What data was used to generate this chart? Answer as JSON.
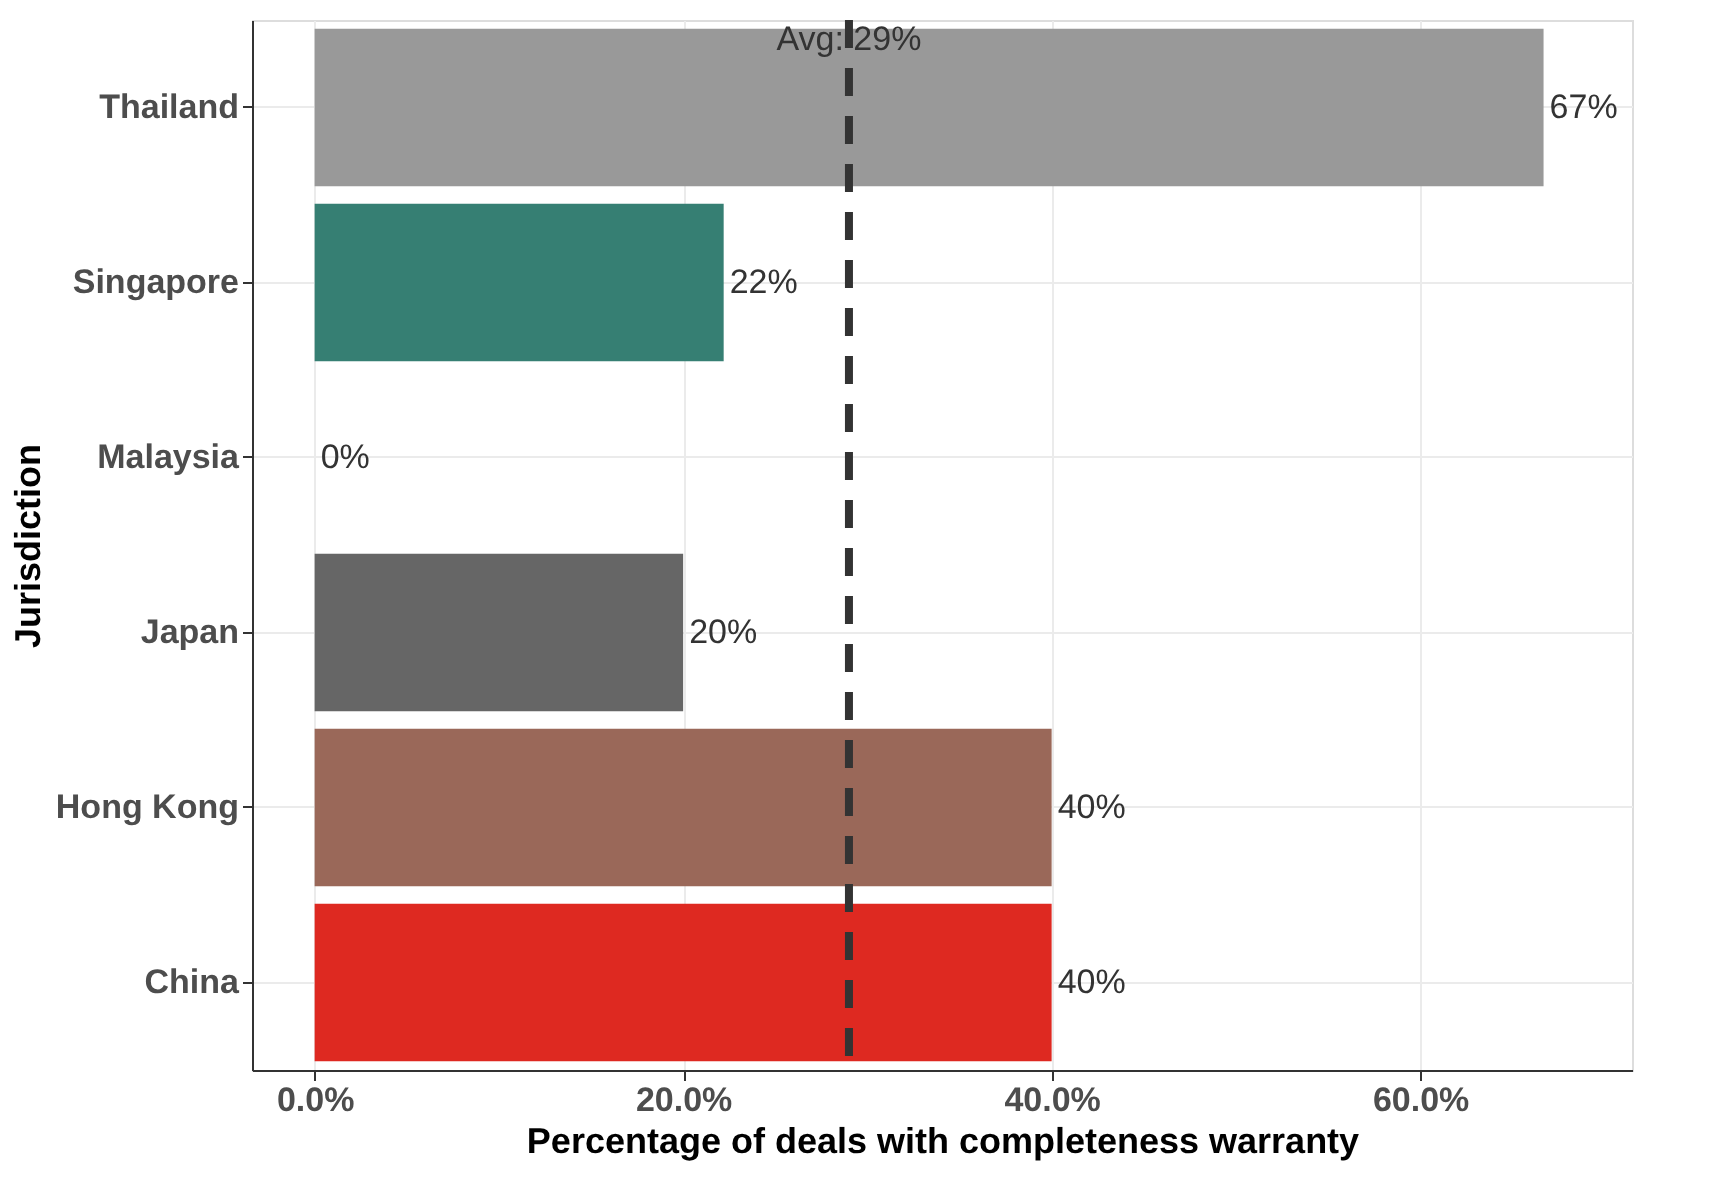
{
  "chart_data": {
    "type": "bar",
    "orientation": "horizontal",
    "xlabel": "Percentage of deals with completeness warranty",
    "ylabel": "Jurisdiction",
    "categories": [
      "Thailand",
      "Singapore",
      "Malaysia",
      "Japan",
      "Hong Kong",
      "China"
    ],
    "values": [
      66.7,
      22.2,
      0,
      20,
      40,
      40
    ],
    "value_labels": [
      "67%",
      "22%",
      "0%",
      "20%",
      "40%",
      "40%"
    ],
    "colors": [
      "#999999",
      "#367f73",
      "#cccccc",
      "#666666",
      "#9a6859",
      "#de2921"
    ],
    "xlim": [
      -3.4,
      71.5
    ],
    "xticks": [
      {
        "value": 0,
        "label": "0.0%"
      },
      {
        "value": 20,
        "label": "20.0%"
      },
      {
        "value": 40,
        "label": "40.0%"
      },
      {
        "value": 60,
        "label": "60.0%"
      }
    ],
    "grid": true,
    "ref_lines": [
      {
        "axis": "x",
        "value": 29,
        "label": "Avg: 29%",
        "color": "#333333",
        "line_style": "dashed"
      }
    ]
  }
}
